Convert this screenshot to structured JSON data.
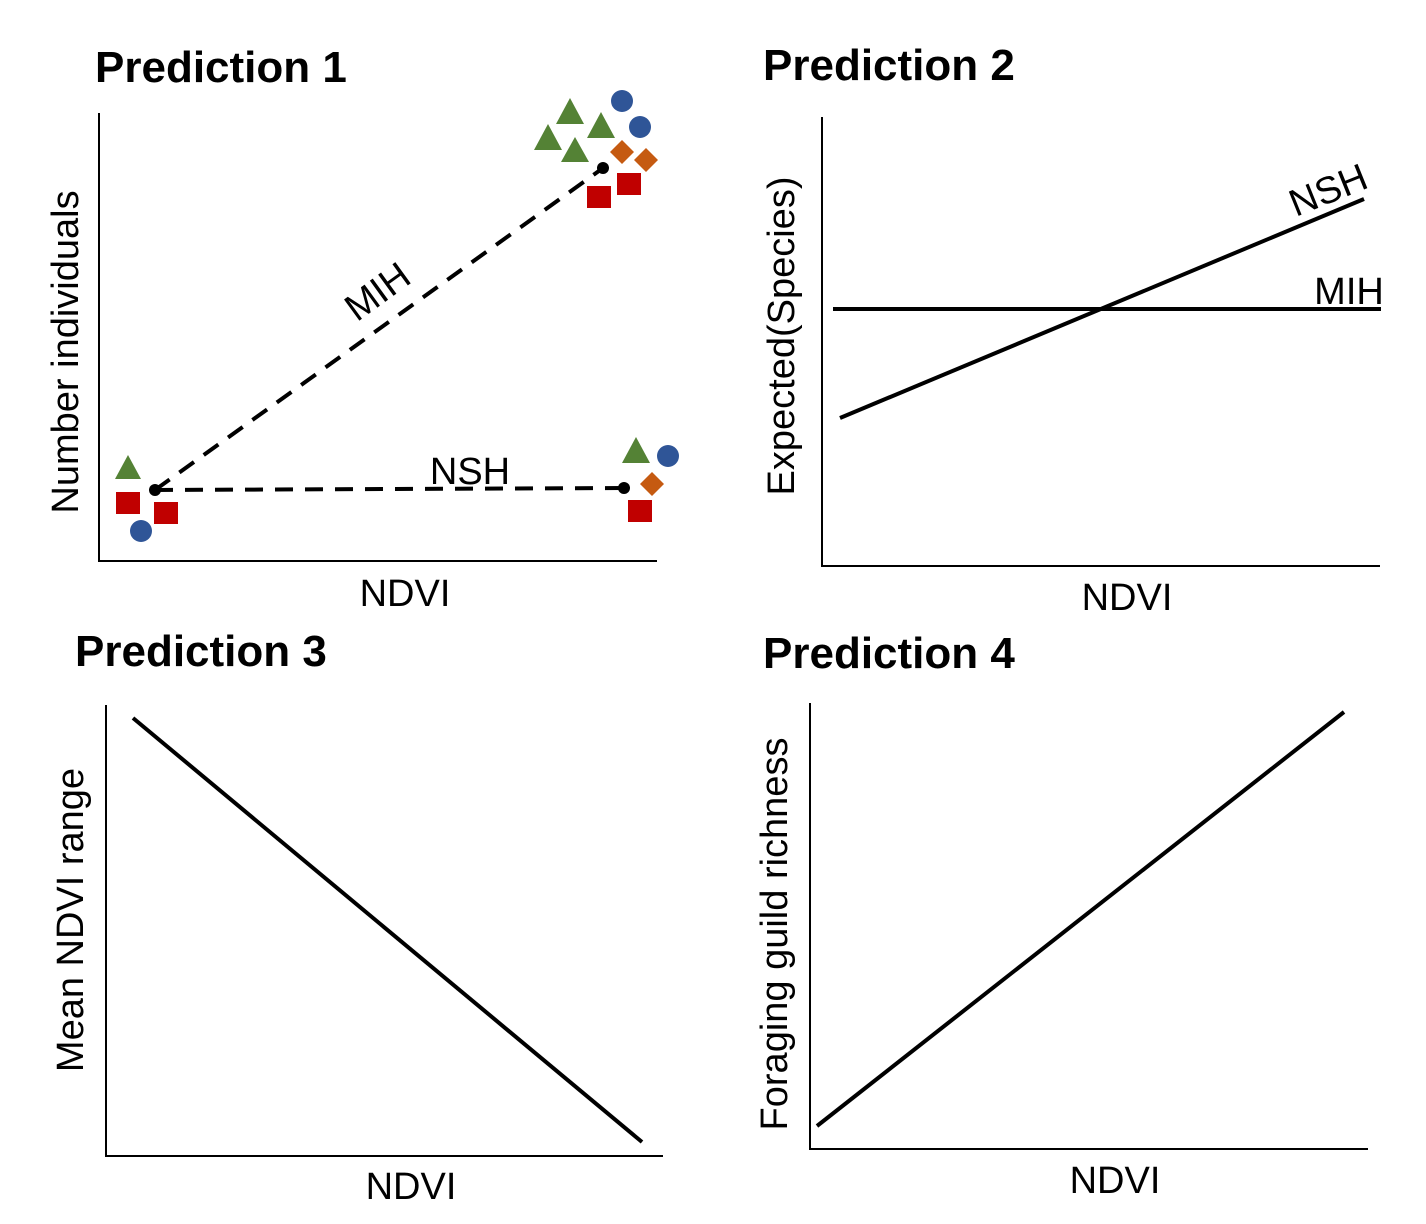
{
  "colors": {
    "triangle": "#548235",
    "circle": "#2f5597",
    "diamond": "#c55a11",
    "square": "#c00000",
    "line": "#000000"
  },
  "panel1": {
    "title": "Prediction 1",
    "xlabel": "NDVI",
    "ylabel": "Number individuals",
    "mih_label": "MIH",
    "nsh_label": "NSH"
  },
  "panel2": {
    "title": "Prediction 2",
    "xlabel": "NDVI",
    "ylabel": "Expected(Species)",
    "nsh_label": "NSH",
    "mih_label": "MIH"
  },
  "panel3": {
    "title": "Prediction 3",
    "xlabel": "NDVI",
    "ylabel": "Mean NDVI range"
  },
  "panel4": {
    "title": "Prediction 4",
    "xlabel": "NDVI",
    "ylabel": "Foraging guild richness"
  }
}
